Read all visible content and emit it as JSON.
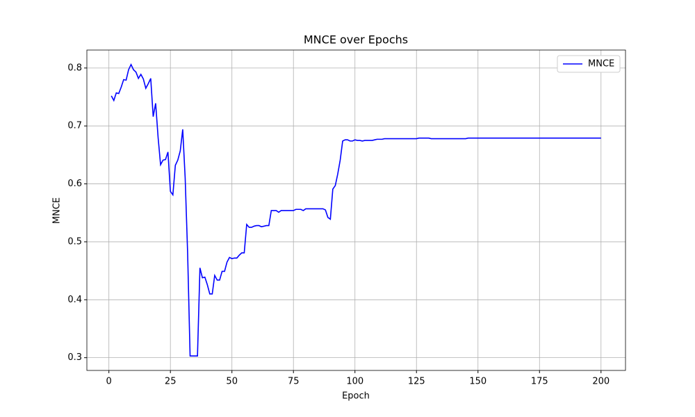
{
  "chart_data": {
    "type": "line",
    "title": "MNCE over Epochs",
    "xlabel": "Epoch",
    "ylabel": "MNCE",
    "x": [
      1,
      2,
      3,
      4,
      5,
      6,
      7,
      8,
      9,
      10,
      11,
      12,
      13,
      14,
      15,
      16,
      17,
      18,
      19,
      20,
      21,
      22,
      23,
      24,
      25,
      26,
      27,
      28,
      29,
      30,
      31,
      32,
      33,
      34,
      35,
      36,
      37,
      38,
      39,
      40,
      41,
      42,
      43,
      44,
      45,
      46,
      47,
      48,
      49,
      50,
      51,
      52,
      53,
      54,
      55,
      56,
      57,
      58,
      59,
      60,
      61,
      62,
      63,
      64,
      65,
      66,
      67,
      68,
      69,
      70,
      71,
      72,
      73,
      74,
      75,
      76,
      77,
      78,
      79,
      80,
      81,
      82,
      83,
      84,
      85,
      86,
      87,
      88,
      89,
      90,
      91,
      92,
      93,
      94,
      95,
      96,
      97,
      98,
      99,
      100,
      101,
      102,
      103,
      104,
      105,
      106,
      107,
      108,
      109,
      110,
      111,
      112,
      113,
      114,
      115,
      116,
      117,
      118,
      119,
      120,
      121,
      122,
      123,
      124,
      125,
      126,
      127,
      128,
      129,
      130,
      131,
      132,
      133,
      134,
      135,
      136,
      137,
      138,
      139,
      140,
      141,
      142,
      143,
      144,
      145,
      146,
      147,
      148,
      149,
      150,
      151,
      152,
      153,
      154,
      155,
      156,
      157,
      158,
      159,
      160,
      161,
      162,
      163,
      164,
      165,
      166,
      167,
      168,
      169,
      170,
      171,
      172,
      173,
      174,
      175,
      176,
      177,
      178,
      179,
      180,
      181,
      182,
      183,
      184,
      185,
      186,
      187,
      188,
      189,
      190,
      191,
      192,
      193,
      194,
      195,
      196,
      197,
      198,
      199,
      200
    ],
    "series": [
      {
        "name": "MNCE",
        "color": "#0000ff",
        "values": [
          0.752,
          0.744,
          0.757,
          0.756,
          0.767,
          0.78,
          0.779,
          0.797,
          0.806,
          0.797,
          0.793,
          0.782,
          0.789,
          0.781,
          0.765,
          0.773,
          0.782,
          0.716,
          0.739,
          0.68,
          0.633,
          0.641,
          0.642,
          0.655,
          0.587,
          0.581,
          0.632,
          0.641,
          0.657,
          0.694,
          0.61,
          0.48,
          0.303,
          0.303,
          0.303,
          0.303,
          0.455,
          0.438,
          0.439,
          0.426,
          0.41,
          0.41,
          0.442,
          0.434,
          0.434,
          0.449,
          0.449,
          0.465,
          0.473,
          0.471,
          0.472,
          0.472,
          0.477,
          0.481,
          0.481,
          0.53,
          0.525,
          0.525,
          0.527,
          0.528,
          0.528,
          0.526,
          0.527,
          0.528,
          0.528,
          0.554,
          0.554,
          0.554,
          0.551,
          0.554,
          0.554,
          0.554,
          0.554,
          0.554,
          0.554,
          0.556,
          0.556,
          0.556,
          0.554,
          0.557,
          0.557,
          0.557,
          0.557,
          0.557,
          0.557,
          0.557,
          0.557,
          0.555,
          0.542,
          0.539,
          0.591,
          0.597,
          0.617,
          0.641,
          0.674,
          0.676,
          0.676,
          0.674,
          0.674,
          0.676,
          0.675,
          0.675,
          0.674,
          0.675,
          0.675,
          0.675,
          0.675,
          0.676,
          0.677,
          0.677,
          0.677,
          0.678,
          0.678,
          0.678,
          0.678,
          0.678,
          0.678,
          0.678,
          0.678,
          0.678,
          0.678,
          0.678,
          0.678,
          0.678,
          0.678,
          0.679,
          0.679,
          0.679,
          0.679,
          0.679,
          0.678,
          0.678,
          0.678,
          0.678,
          0.678,
          0.678,
          0.678,
          0.678,
          0.678,
          0.678,
          0.678,
          0.678,
          0.678,
          0.678,
          0.678,
          0.679,
          0.679,
          0.679,
          0.679,
          0.679,
          0.679,
          0.679,
          0.679,
          0.679,
          0.679,
          0.679,
          0.679,
          0.679,
          0.679,
          0.679,
          0.679,
          0.679,
          0.679,
          0.679,
          0.679,
          0.679,
          0.679,
          0.679,
          0.679,
          0.679,
          0.679,
          0.679,
          0.679,
          0.679,
          0.679,
          0.679,
          0.679,
          0.679,
          0.679,
          0.679,
          0.679,
          0.679,
          0.679,
          0.679,
          0.679,
          0.679,
          0.679,
          0.679,
          0.679,
          0.679,
          0.679,
          0.679,
          0.679,
          0.679,
          0.679,
          0.679,
          0.679,
          0.679,
          0.679,
          0.679
        ]
      }
    ],
    "xlim": [
      -8.95,
      209.95
    ],
    "ylim": [
      0.278,
      0.831
    ],
    "xticks": [
      0,
      25,
      50,
      75,
      100,
      125,
      150,
      175,
      200
    ],
    "yticks": [
      0.3,
      0.4,
      0.5,
      0.6,
      0.7,
      0.8
    ],
    "grid": true,
    "legend": "upper right"
  }
}
